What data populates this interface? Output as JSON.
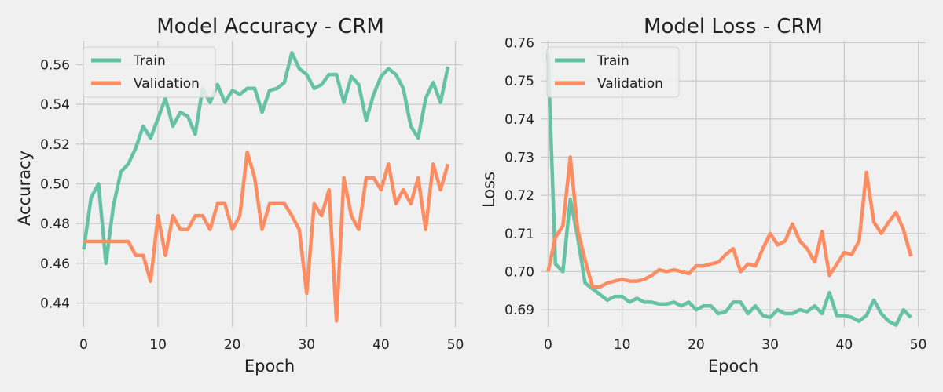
{
  "charts": [
    {
      "title": "Model Accuracy - CRM",
      "xlabel": "Epoch",
      "ylabel": "Accuracy",
      "xticks": [
        "0",
        "10",
        "20",
        "30",
        "40",
        "50"
      ],
      "yticks": [
        "0.44",
        "0.46",
        "0.48",
        "0.50",
        "0.52",
        "0.54",
        "0.56"
      ]
    },
    {
      "title": "Model Loss - CRM",
      "xlabel": "Epoch",
      "ylabel": "Loss",
      "xticks": [
        "0",
        "10",
        "20",
        "30",
        "40",
        "50"
      ],
      "yticks": [
        "0.69",
        "0.70",
        "0.71",
        "0.72",
        "0.73",
        "0.74",
        "0.75",
        "0.76"
      ]
    }
  ],
  "chart_data": [
    {
      "type": "line",
      "title": "Model Accuracy - CRM",
      "xlabel": "Epoch",
      "ylabel": "Accuracy",
      "xlim": [
        -1,
        51
      ],
      "ylim": [
        0.428,
        0.572
      ],
      "xticks": [
        0,
        10,
        20,
        30,
        40,
        50
      ],
      "yticks": [
        0.44,
        0.46,
        0.48,
        0.5,
        0.52,
        0.54,
        0.56
      ],
      "grid": true,
      "legend": "top-left",
      "x": [
        0,
        1,
        2,
        3,
        4,
        5,
        6,
        7,
        8,
        9,
        10,
        11,
        12,
        13,
        14,
        15,
        16,
        17,
        18,
        19,
        20,
        21,
        22,
        23,
        24,
        25,
        26,
        27,
        28,
        29,
        30,
        31,
        32,
        33,
        34,
        35,
        36,
        37,
        38,
        39,
        40,
        41,
        42,
        43,
        44,
        45,
        46,
        47,
        48,
        49
      ],
      "series": [
        {
          "name": "Train",
          "color": "#66c2a5",
          "values": [
            0.467,
            0.493,
            0.5,
            0.46,
            0.489,
            0.506,
            0.51,
            0.518,
            0.529,
            0.523,
            0.533,
            0.543,
            0.529,
            0.536,
            0.534,
            0.525,
            0.548,
            0.541,
            0.55,
            0.541,
            0.547,
            0.545,
            0.548,
            0.548,
            0.536,
            0.547,
            0.548,
            0.551,
            0.566,
            0.558,
            0.555,
            0.548,
            0.55,
            0.555,
            0.555,
            0.541,
            0.554,
            0.55,
            0.532,
            0.545,
            0.554,
            0.558,
            0.555,
            0.548,
            0.529,
            0.523,
            0.543,
            0.551,
            0.541,
            0.559
          ]
        },
        {
          "name": "Validation",
          "color": "#fc8d62",
          "values": [
            0.471,
            0.471,
            0.471,
            0.471,
            0.471,
            0.471,
            0.471,
            0.464,
            0.464,
            0.451,
            0.484,
            0.464,
            0.484,
            0.477,
            0.477,
            0.484,
            0.484,
            0.477,
            0.49,
            0.49,
            0.477,
            0.484,
            0.516,
            0.503,
            0.477,
            0.49,
            0.49,
            0.49,
            0.484,
            0.477,
            0.445,
            0.49,
            0.484,
            0.497,
            0.431,
            0.503,
            0.484,
            0.477,
            0.503,
            0.503,
            0.497,
            0.51,
            0.49,
            0.497,
            0.49,
            0.503,
            0.477,
            0.51,
            0.497,
            0.51
          ]
        }
      ]
    },
    {
      "type": "line",
      "title": "Model Loss - CRM",
      "xlabel": "Epoch",
      "ylabel": "Loss",
      "xlim": [
        -1,
        51
      ],
      "ylim": [
        0.6855,
        0.7605
      ],
      "xticks": [
        0,
        10,
        20,
        30,
        40,
        50
      ],
      "yticks": [
        0.69,
        0.7,
        0.71,
        0.72,
        0.73,
        0.74,
        0.75,
        0.76
      ],
      "grid": true,
      "legend": "top-left",
      "x": [
        0,
        1,
        2,
        3,
        4,
        5,
        6,
        7,
        8,
        9,
        10,
        11,
        12,
        13,
        14,
        15,
        16,
        17,
        18,
        19,
        20,
        21,
        22,
        23,
        24,
        25,
        26,
        27,
        28,
        29,
        30,
        31,
        32,
        33,
        34,
        35,
        36,
        37,
        38,
        39,
        40,
        41,
        42,
        43,
        44,
        45,
        46,
        47,
        48,
        49
      ],
      "series": [
        {
          "name": "Train",
          "color": "#66c2a5",
          "values": [
            0.757,
            0.702,
            0.7,
            0.719,
            0.709,
            0.697,
            0.6955,
            0.694,
            0.6925,
            0.6935,
            0.6935,
            0.692,
            0.693,
            0.692,
            0.692,
            0.6915,
            0.6915,
            0.692,
            0.691,
            0.692,
            0.69,
            0.691,
            0.691,
            0.689,
            0.6895,
            0.692,
            0.692,
            0.689,
            0.691,
            0.6885,
            0.688,
            0.69,
            0.689,
            0.689,
            0.69,
            0.6895,
            0.691,
            0.689,
            0.6945,
            0.6885,
            0.6885,
            0.688,
            0.687,
            0.6885,
            0.6925,
            0.689,
            0.687,
            0.686,
            0.69,
            0.688
          ]
        },
        {
          "name": "Validation",
          "color": "#fc8d62",
          "values": [
            0.7,
            0.709,
            0.712,
            0.73,
            0.711,
            0.703,
            0.696,
            0.696,
            0.697,
            0.6975,
            0.698,
            0.6975,
            0.6975,
            0.698,
            0.699,
            0.7005,
            0.7,
            0.7005,
            0.7,
            0.6995,
            0.7015,
            0.7015,
            0.702,
            0.7025,
            0.7045,
            0.706,
            0.7,
            0.702,
            0.7015,
            0.706,
            0.71,
            0.707,
            0.708,
            0.7125,
            0.708,
            0.706,
            0.7025,
            0.7105,
            0.699,
            0.702,
            0.705,
            0.7045,
            0.708,
            0.726,
            0.713,
            0.71,
            0.713,
            0.7155,
            0.711,
            0.704
          ]
        }
      ]
    }
  ]
}
